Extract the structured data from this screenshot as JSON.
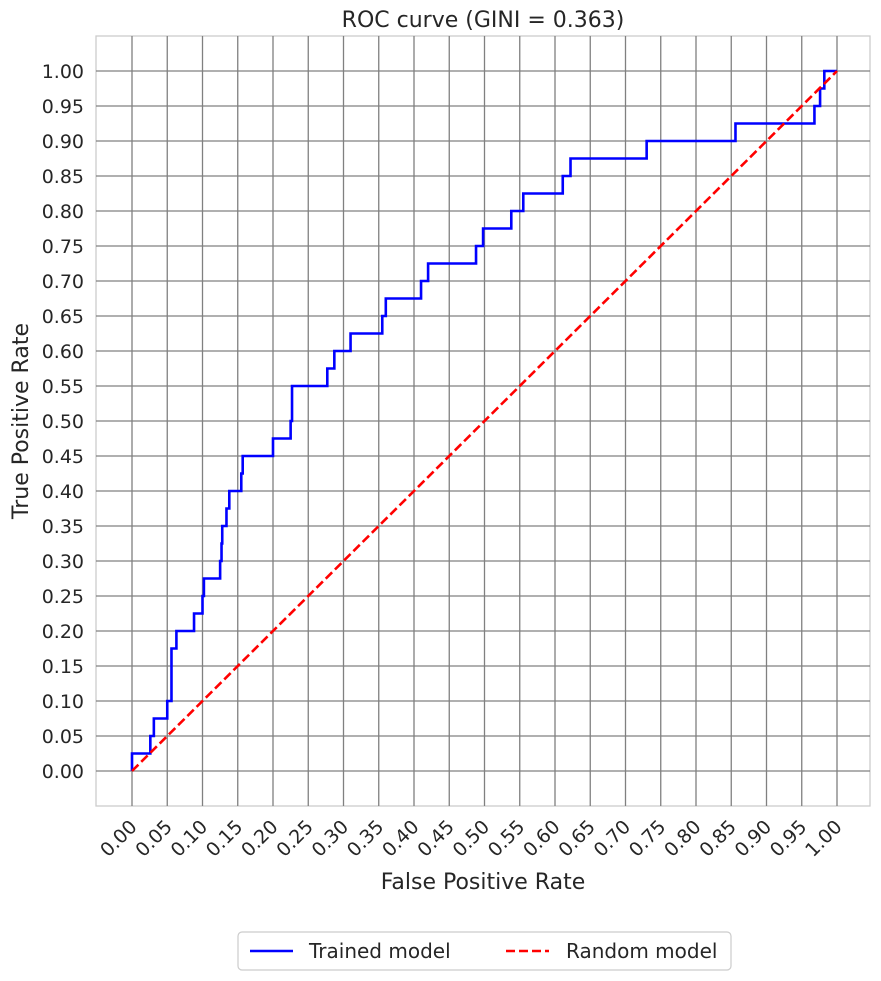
{
  "chart_data": {
    "type": "line",
    "title": "ROC curve (GINI = 0.363)",
    "xlabel": "False Positive Rate",
    "ylabel": "True Positive Rate",
    "xlim": [
      -0.05,
      1.05
    ],
    "ylim": [
      -0.05,
      1.05
    ],
    "xticks": [
      "0.00",
      "0.05",
      "0.10",
      "0.15",
      "0.20",
      "0.25",
      "0.30",
      "0.35",
      "0.40",
      "0.45",
      "0.50",
      "0.55",
      "0.60",
      "0.65",
      "0.70",
      "0.75",
      "0.80",
      "0.85",
      "0.90",
      "0.95",
      "1.00"
    ],
    "yticks": [
      "0.00",
      "0.05",
      "0.10",
      "0.15",
      "0.20",
      "0.25",
      "0.30",
      "0.35",
      "0.40",
      "0.45",
      "0.50",
      "0.55",
      "0.60",
      "0.65",
      "0.70",
      "0.75",
      "0.80",
      "0.85",
      "0.90",
      "0.95",
      "1.00"
    ],
    "grid": true,
    "legend_position": "bottom-center",
    "series": [
      {
        "name": "Trained model",
        "color": "#0000ff",
        "style": "solid",
        "points": [
          [
            0.0,
            0.0
          ],
          [
            0.0,
            0.025
          ],
          [
            0.026,
            0.025
          ],
          [
            0.026,
            0.05
          ],
          [
            0.031,
            0.05
          ],
          [
            0.031,
            0.075
          ],
          [
            0.05,
            0.075
          ],
          [
            0.05,
            0.1
          ],
          [
            0.056,
            0.1
          ],
          [
            0.056,
            0.175
          ],
          [
            0.063,
            0.175
          ],
          [
            0.063,
            0.2
          ],
          [
            0.088,
            0.2
          ],
          [
            0.088,
            0.225
          ],
          [
            0.1,
            0.225
          ],
          [
            0.1,
            0.25
          ],
          [
            0.102,
            0.25
          ],
          [
            0.102,
            0.275
          ],
          [
            0.125,
            0.275
          ],
          [
            0.125,
            0.3
          ],
          [
            0.127,
            0.3
          ],
          [
            0.127,
            0.325
          ],
          [
            0.128,
            0.325
          ],
          [
            0.128,
            0.35
          ],
          [
            0.134,
            0.35
          ],
          [
            0.134,
            0.375
          ],
          [
            0.138,
            0.375
          ],
          [
            0.138,
            0.4
          ],
          [
            0.155,
            0.4
          ],
          [
            0.155,
            0.425
          ],
          [
            0.157,
            0.425
          ],
          [
            0.157,
            0.45
          ],
          [
            0.2,
            0.45
          ],
          [
            0.2,
            0.475
          ],
          [
            0.225,
            0.475
          ],
          [
            0.225,
            0.5
          ],
          [
            0.227,
            0.5
          ],
          [
            0.227,
            0.55
          ],
          [
            0.277,
            0.55
          ],
          [
            0.277,
            0.575
          ],
          [
            0.287,
            0.575
          ],
          [
            0.287,
            0.6
          ],
          [
            0.31,
            0.6
          ],
          [
            0.31,
            0.625
          ],
          [
            0.355,
            0.625
          ],
          [
            0.355,
            0.65
          ],
          [
            0.36,
            0.65
          ],
          [
            0.36,
            0.675
          ],
          [
            0.41,
            0.675
          ],
          [
            0.41,
            0.7
          ],
          [
            0.42,
            0.7
          ],
          [
            0.42,
            0.725
          ],
          [
            0.488,
            0.725
          ],
          [
            0.488,
            0.75
          ],
          [
            0.498,
            0.75
          ],
          [
            0.498,
            0.775
          ],
          [
            0.538,
            0.775
          ],
          [
            0.538,
            0.8
          ],
          [
            0.555,
            0.8
          ],
          [
            0.555,
            0.825
          ],
          [
            0.611,
            0.825
          ],
          [
            0.611,
            0.85
          ],
          [
            0.622,
            0.85
          ],
          [
            0.622,
            0.875
          ],
          [
            0.73,
            0.875
          ],
          [
            0.73,
            0.9
          ],
          [
            0.856,
            0.9
          ],
          [
            0.856,
            0.925
          ],
          [
            0.968,
            0.925
          ],
          [
            0.968,
            0.95
          ],
          [
            0.976,
            0.95
          ],
          [
            0.976,
            0.975
          ],
          [
            0.982,
            0.975
          ],
          [
            0.982,
            1.0
          ],
          [
            1.0,
            1.0
          ]
        ]
      },
      {
        "name": "Random model",
        "color": "#ff0000",
        "style": "dashed",
        "points": [
          [
            0.0,
            0.0
          ],
          [
            1.0,
            1.0
          ]
        ]
      }
    ]
  }
}
